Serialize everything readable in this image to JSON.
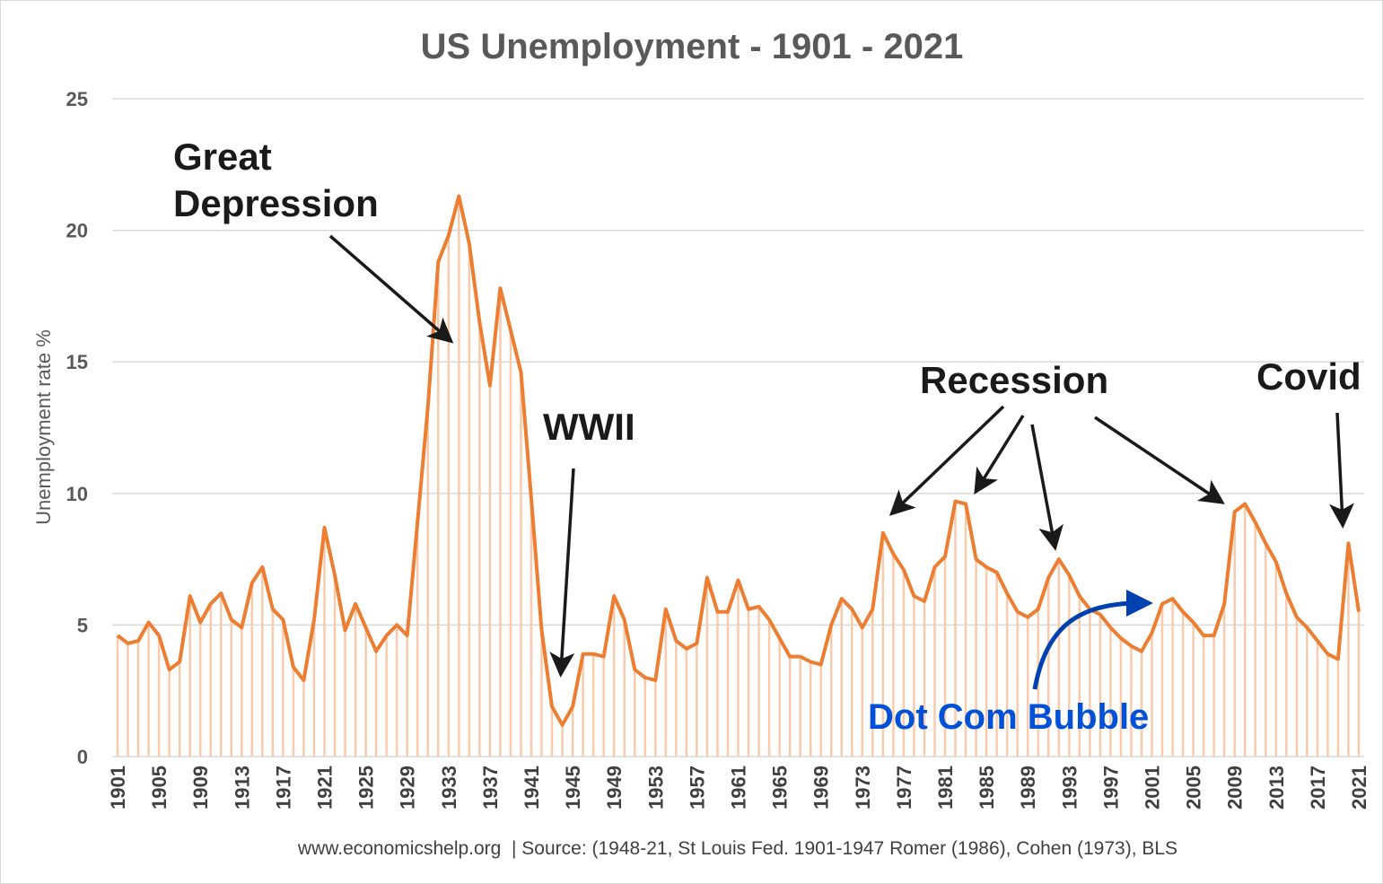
{
  "chart_data": {
    "type": "line",
    "title": "US Unemployment - 1901 - 2021",
    "xlabel": "",
    "ylabel": "Unemployment  rate %",
    "ylim": [
      0,
      25
    ],
    "yticks": [
      0,
      5,
      10,
      15,
      20,
      25
    ],
    "grid": true,
    "x_start": 1901,
    "x_end": 2021,
    "xtick_step": 4,
    "series": [
      {
        "name": "Unemployment rate %",
        "color": "#ED7D31",
        "values": [
          4.6,
          4.3,
          4.4,
          5.1,
          4.6,
          3.3,
          3.6,
          6.1,
          5.1,
          5.8,
          6.2,
          5.2,
          4.9,
          6.6,
          7.2,
          5.6,
          5.2,
          3.4,
          2.9,
          5.2,
          8.7,
          6.9,
          4.8,
          5.8,
          4.9,
          4.0,
          4.6,
          5.0,
          4.6,
          8.9,
          13.3,
          18.8,
          19.8,
          21.3,
          19.5,
          16.5,
          14.1,
          17.8,
          16.2,
          14.6,
          9.8,
          4.8,
          1.9,
          1.2,
          1.9,
          3.9,
          3.9,
          3.8,
          6.1,
          5.2,
          3.3,
          3.0,
          2.9,
          5.6,
          4.4,
          4.1,
          4.3,
          6.8,
          5.5,
          5.5,
          6.7,
          5.6,
          5.7,
          5.2,
          4.5,
          3.8,
          3.8,
          3.6,
          3.5,
          5.0,
          6.0,
          5.6,
          4.9,
          5.6,
          8.5,
          7.7,
          7.1,
          6.1,
          5.9,
          7.2,
          7.6,
          9.7,
          9.6,
          7.5,
          7.2,
          7.0,
          6.2,
          5.5,
          5.3,
          5.6,
          6.8,
          7.5,
          6.9,
          6.1,
          5.6,
          5.4,
          4.9,
          4.5,
          4.2,
          4.0,
          4.7,
          5.8,
          6.0,
          5.5,
          5.1,
          4.6,
          4.6,
          5.8,
          9.3,
          9.6,
          8.9,
          8.1,
          7.4,
          6.2,
          5.3,
          4.9,
          4.4,
          3.9,
          3.7,
          8.1,
          5.5
        ]
      }
    ],
    "annotations": [
      {
        "id": "great-depression",
        "lines": [
          "Great",
          "Depression"
        ],
        "target_year": 1934,
        "color": "#1a1a1a"
      },
      {
        "id": "wwii",
        "lines": [
          "WWII"
        ],
        "target_year": 1944,
        "color": "#1a1a1a"
      },
      {
        "id": "recession",
        "lines": [
          "Recession"
        ],
        "target_years": [
          1975,
          1983,
          1992,
          2009
        ],
        "color": "#1a1a1a"
      },
      {
        "id": "covid",
        "lines": [
          "Covid"
        ],
        "target_year": 2020,
        "color": "#1a1a1a"
      },
      {
        "id": "dot-com-bubble",
        "lines": [
          "Dot Com Bubble"
        ],
        "target_year": 2002,
        "color": "#0050D8"
      }
    ],
    "source": "www.economicshelp.org  | Source: (1948-21, St Louis Fed. 1901-1947 Romer (1986), Cohen (1973), BLS"
  }
}
